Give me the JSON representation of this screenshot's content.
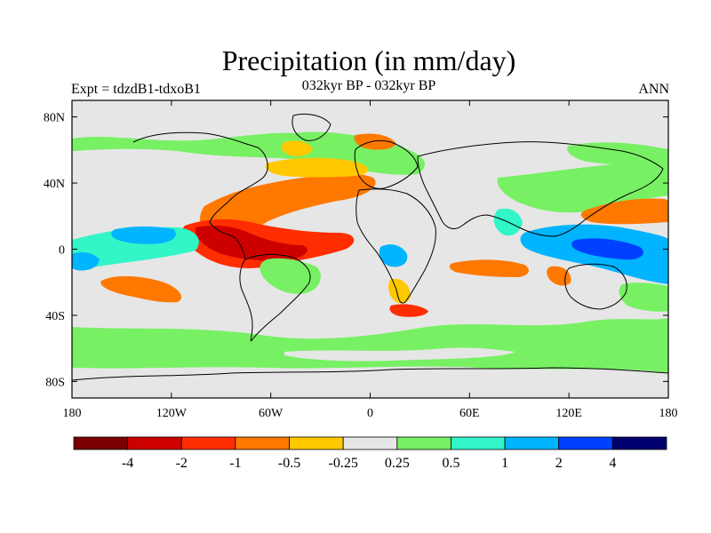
{
  "title": "Precipitation (in mm/day)",
  "subtitle": "032kyr BP - 032kyr BP",
  "left_label": "Expt = tdzdB1-tdxoB1",
  "right_label": "ANN",
  "x_ticks": [
    "180",
    "120W",
    "60W",
    "0",
    "60E",
    "120E",
    "180"
  ],
  "y_ticks": [
    "80N",
    "40N",
    "0",
    "40S",
    "80S"
  ],
  "colorbar": {
    "colors": [
      "#780000",
      "#cd0000",
      "#ff2d00",
      "#ff7800",
      "#ffc800",
      "#e6e6e6",
      "#78f064",
      "#32f5c8",
      "#00b4ff",
      "#0041ff",
      "#00006e"
    ],
    "labels": [
      "-4",
      "-2",
      "-1",
      "-0.5",
      "-0.25",
      "0.25",
      "0.5",
      "1",
      "2",
      "4"
    ]
  },
  "palette": {
    "land_outline": "#000000",
    "background": "#e6e6e6"
  }
}
